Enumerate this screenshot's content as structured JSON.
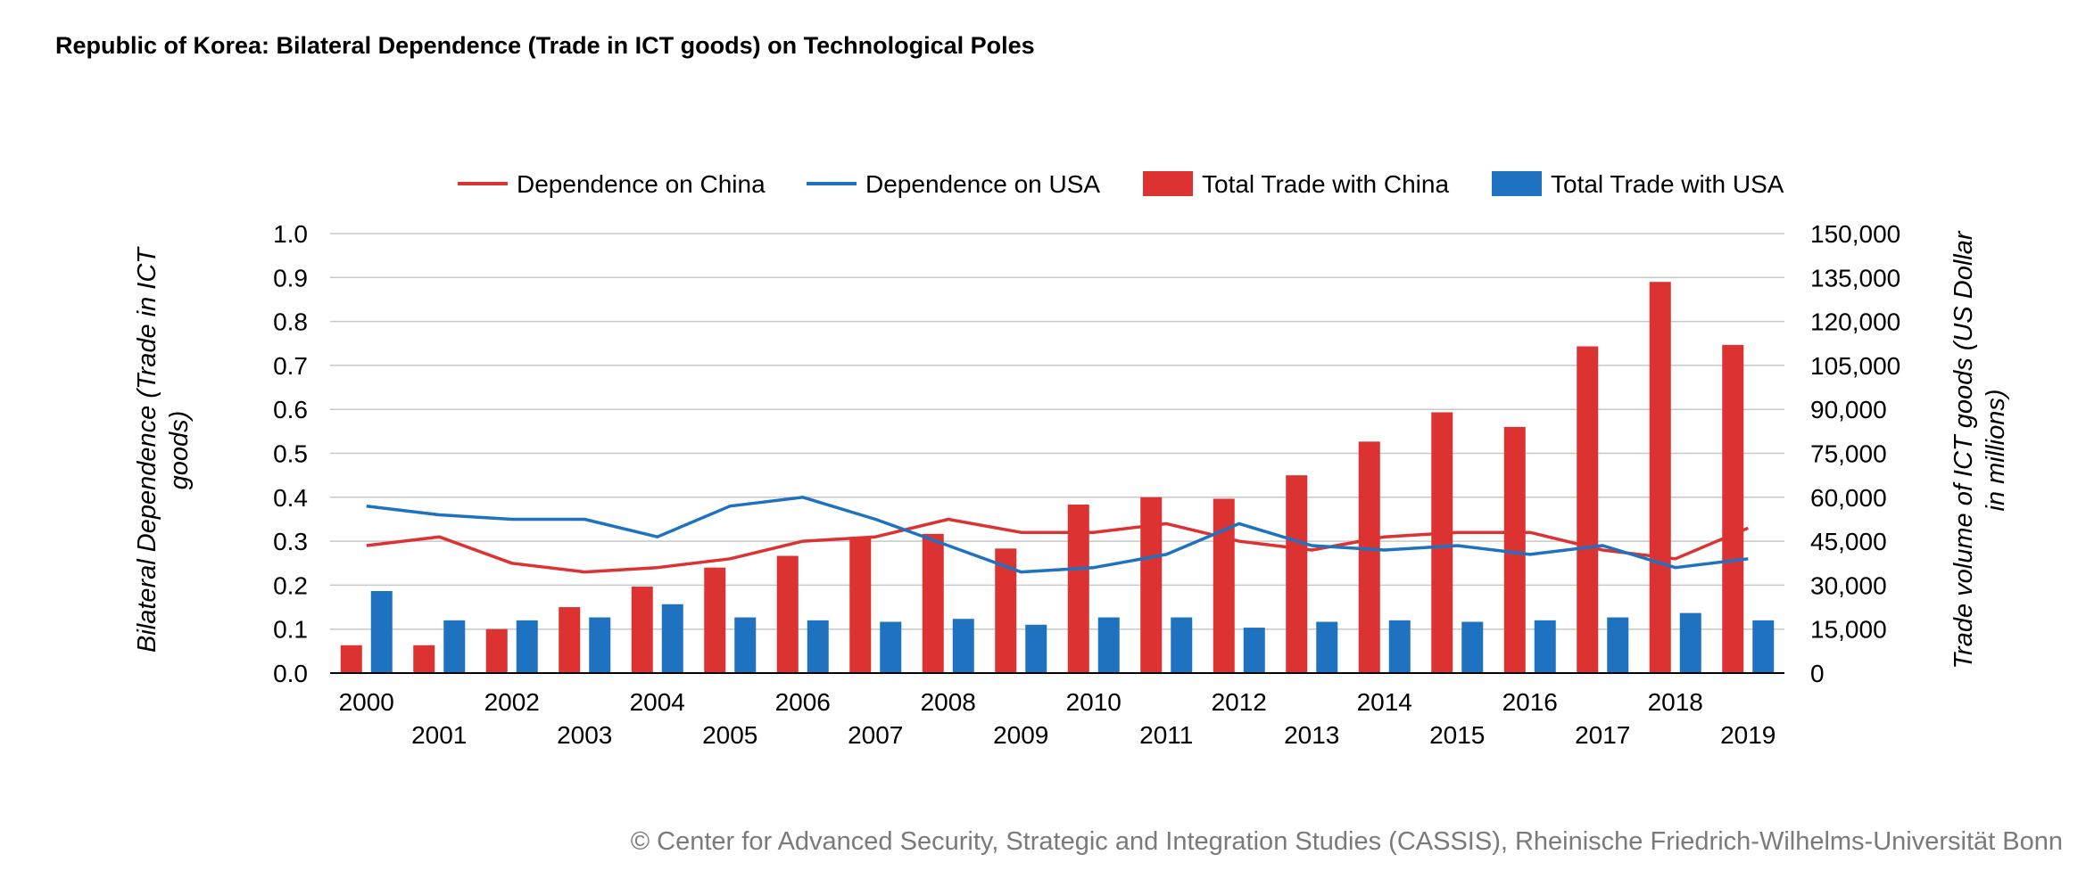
{
  "chart_data": {
    "type": "bar",
    "title": "Republic of Korea: Bilateral Dependence (Trade in ICT goods) on Technological Poles",
    "categories": [
      "2000",
      "2001",
      "2002",
      "2003",
      "2004",
      "2005",
      "2006",
      "2007",
      "2008",
      "2009",
      "2010",
      "2011",
      "2012",
      "2013",
      "2014",
      "2015",
      "2016",
      "2017",
      "2018",
      "2019"
    ],
    "y_left": {
      "label": "Bilateral Dependence (Trade in ICT goods)",
      "min": 0,
      "max": 1.0,
      "step": 0.1,
      "ticks": [
        "0.0",
        "0.1",
        "0.2",
        "0.3",
        "0.4",
        "0.5",
        "0.6",
        "0.7",
        "0.8",
        "0.9",
        "1.0"
      ]
    },
    "y_right": {
      "label": "Trade volume of ICT goods (US Dollar in millions)",
      "min": 0,
      "max": 150000,
      "step": 15000,
      "ticks": [
        "0",
        "15,000",
        "30,000",
        "45,000",
        "60,000",
        "75,000",
        "90,000",
        "105,000",
        "120,000",
        "135,000",
        "150,000"
      ]
    },
    "series": [
      {
        "name": "Total Trade with China",
        "kind": "bar",
        "axis": "right",
        "color": "#dc3232",
        "values": [
          9500,
          9500,
          15000,
          22500,
          29500,
          36000,
          40000,
          46000,
          47500,
          42500,
          57500,
          60000,
          59500,
          67500,
          79000,
          89000,
          84000,
          111500,
          133500,
          112000
        ]
      },
      {
        "name": "Total Trade with USA",
        "kind": "bar",
        "axis": "right",
        "color": "#1f72bf",
        "values": [
          28000,
          18000,
          18000,
          19000,
          23500,
          19000,
          18000,
          17500,
          18500,
          16500,
          19000,
          19000,
          15500,
          17500,
          18000,
          17500,
          18000,
          19000,
          20500,
          18000
        ]
      },
      {
        "name": "Dependence on China",
        "kind": "line",
        "axis": "left",
        "color": "#dc3232",
        "values": [
          0.29,
          0.31,
          0.25,
          0.23,
          0.24,
          0.26,
          0.3,
          0.31,
          0.35,
          0.32,
          0.32,
          0.34,
          0.3,
          0.28,
          0.31,
          0.32,
          0.32,
          0.28,
          0.26,
          0.33
        ]
      },
      {
        "name": "Dependence on USA",
        "kind": "line",
        "axis": "left",
        "color": "#1f72bf",
        "values": [
          0.38,
          0.36,
          0.35,
          0.35,
          0.31,
          0.38,
          0.4,
          0.35,
          0.29,
          0.23,
          0.24,
          0.27,
          0.34,
          0.29,
          0.28,
          0.29,
          0.27,
          0.29,
          0.24,
          0.26
        ]
      }
    ],
    "legend": {
      "placement": "top-center",
      "entries": [
        "Dependence on China",
        "Dependence on USA",
        "Total Trade with China",
        "Total Trade with USA"
      ]
    },
    "grid": true,
    "credit": "© Center for Advanced Security, Strategic and Integration Studies (CASSIS), Rheinische Friedrich-Wilhelms-Universität Bonn"
  }
}
